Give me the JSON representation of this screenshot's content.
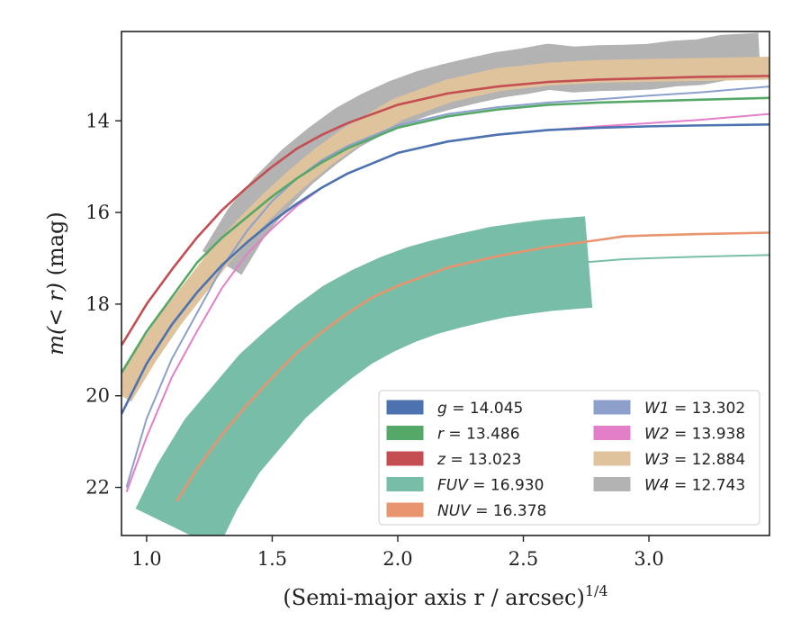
{
  "chart_data": {
    "type": "line",
    "xlabel": "(Semi-major axis r / arcsec)",
    "xlabel_exp": "1/4",
    "ylabel_prefix": "m(< r)",
    "ylabel_unit": " (mag)",
    "xlim": [
      0.9,
      3.48
    ],
    "ylim": [
      23.05,
      12.05
    ],
    "y_inverted": true,
    "xticks": [
      1.0,
      1.5,
      2.0,
      2.5,
      3.0
    ],
    "xtick_labels": [
      "1.0",
      "1.5",
      "2.0",
      "2.5",
      "3.0"
    ],
    "yticks": [
      14,
      16,
      18,
      20,
      22
    ],
    "ytick_labels": [
      "14",
      "16",
      "18",
      "20",
      "22"
    ],
    "grid": false,
    "legend_position": "lower-right",
    "series": [
      {
        "name": "g",
        "value_text": "14.045",
        "color": "#4c72b0",
        "x": [
          0.9,
          1.0,
          1.1,
          1.2,
          1.3,
          1.4,
          1.5,
          1.6,
          1.7,
          1.8,
          2.0,
          2.2,
          2.4,
          2.6,
          2.8,
          3.0,
          3.2,
          3.48
        ],
        "y": [
          20.4,
          19.3,
          18.45,
          17.75,
          17.15,
          16.65,
          16.2,
          15.8,
          15.45,
          15.15,
          14.7,
          14.45,
          14.3,
          14.2,
          14.15,
          14.12,
          14.1,
          14.08
        ]
      },
      {
        "name": "r",
        "value_text": "13.486",
        "color": "#55a868",
        "x": [
          0.9,
          1.0,
          1.1,
          1.2,
          1.3,
          1.4,
          1.5,
          1.6,
          1.7,
          1.8,
          2.0,
          2.2,
          2.4,
          2.6,
          2.8,
          3.0,
          3.2,
          3.48
        ],
        "y": [
          19.5,
          18.6,
          17.85,
          17.1,
          16.55,
          16.1,
          15.65,
          15.25,
          14.9,
          14.6,
          14.15,
          13.9,
          13.75,
          13.65,
          13.6,
          13.57,
          13.54,
          13.5
        ]
      },
      {
        "name": "z",
        "value_text": "13.023",
        "color": "#c44e52",
        "x": [
          0.9,
          1.0,
          1.1,
          1.2,
          1.3,
          1.4,
          1.5,
          1.6,
          1.7,
          1.8,
          2.0,
          2.2,
          2.4,
          2.6,
          2.8,
          3.0,
          3.2,
          3.48
        ],
        "y": [
          18.9,
          18.0,
          17.25,
          16.55,
          15.95,
          15.45,
          15.0,
          14.6,
          14.3,
          14.05,
          13.65,
          13.4,
          13.25,
          13.15,
          13.1,
          13.07,
          13.04,
          13.02
        ]
      },
      {
        "name": "FUV",
        "value_text": "16.930",
        "color": "#77bda8",
        "x": [
          1.12,
          1.2,
          1.3,
          1.4,
          1.5,
          1.6,
          1.7,
          1.8,
          1.9,
          2.0,
          2.1,
          2.2,
          2.3,
          2.4,
          2.5,
          2.6,
          2.76,
          2.9,
          3.1,
          3.3,
          3.48
        ],
        "y": [
          22.9,
          22.0,
          21.1,
          20.45,
          19.8,
          19.3,
          18.85,
          18.45,
          18.15,
          17.9,
          17.7,
          17.55,
          17.42,
          17.3,
          17.22,
          17.15,
          17.08,
          17.02,
          16.98,
          16.95,
          16.93
        ]
      },
      {
        "name": "NUV",
        "value_text": "16.378",
        "color": "#e8956f",
        "x": [
          1.12,
          1.2,
          1.3,
          1.4,
          1.5,
          1.6,
          1.7,
          1.8,
          1.9,
          2.0,
          2.2,
          2.4,
          2.6,
          2.8,
          2.9,
          3.0,
          3.2,
          3.48
        ],
        "y": [
          22.3,
          21.6,
          20.85,
          20.2,
          19.6,
          19.05,
          18.6,
          18.2,
          17.85,
          17.6,
          17.2,
          16.95,
          16.75,
          16.6,
          16.52,
          16.5,
          16.47,
          16.44
        ]
      },
      {
        "name": "W1",
        "value_text": "13.302",
        "color": "#8da0cb",
        "x": [
          0.92,
          1.0,
          1.1,
          1.2,
          1.3,
          1.4,
          1.5,
          1.6,
          1.7,
          1.8,
          2.0,
          2.2,
          2.4,
          2.6,
          2.8,
          3.0,
          3.2,
          3.48
        ],
        "y": [
          22.0,
          20.5,
          19.2,
          18.2,
          17.2,
          16.4,
          15.75,
          15.25,
          14.85,
          14.55,
          14.1,
          13.85,
          13.7,
          13.6,
          13.53,
          13.45,
          13.38,
          13.25
        ]
      },
      {
        "name": "W2",
        "value_text": "13.938",
        "color": "#e27fc8",
        "x": [
          0.92,
          1.0,
          1.1,
          1.2,
          1.3,
          1.4,
          1.5,
          1.6,
          1.7,
          1.8,
          2.0,
          2.2,
          2.4,
          2.6,
          2.8,
          3.0,
          3.2,
          3.48
        ],
        "y": [
          22.1,
          20.9,
          19.6,
          18.6,
          17.65,
          16.9,
          16.35,
          15.85,
          15.45,
          15.15,
          14.7,
          14.45,
          14.3,
          14.2,
          14.12,
          14.05,
          13.98,
          13.85
        ]
      },
      {
        "name": "W3",
        "value_text": "12.884",
        "color": "#dec39c",
        "x": [
          0.9,
          1.0,
          1.1,
          1.2,
          1.3,
          1.4,
          1.5,
          1.6,
          1.7,
          1.8,
          2.0,
          2.2,
          2.4,
          2.6,
          2.8,
          3.0,
          3.2,
          3.48
        ],
        "y": [
          20.0,
          19.1,
          18.3,
          17.6,
          16.9,
          16.3,
          15.75,
          15.25,
          14.8,
          14.4,
          13.75,
          13.35,
          13.1,
          12.98,
          12.92,
          12.9,
          12.88,
          12.85
        ]
      },
      {
        "name": "W4",
        "value_text": "12.743",
        "color": "#b3b3b3",
        "x": [
          1.3,
          1.4,
          1.5,
          1.6,
          1.7,
          1.8,
          1.9,
          2.0,
          2.1,
          2.2,
          2.3,
          2.4,
          2.5,
          2.6,
          2.7,
          2.8,
          2.9,
          3.0,
          3.1,
          3.2,
          3.3,
          3.44
        ],
        "y": [
          17.1,
          16.2,
          15.55,
          15.0,
          14.55,
          14.15,
          13.85,
          13.6,
          13.4,
          13.25,
          13.12,
          13.0,
          12.92,
          12.82,
          12.88,
          12.85,
          12.84,
          12.82,
          12.75,
          12.72,
          12.62,
          12.58
        ]
      }
    ],
    "bands": {
      "W4": 1.0,
      "FUV": 2.0,
      "W3": 0.5
    },
    "legend_columns": [
      [
        "g",
        "r",
        "z",
        "FUV",
        "NUV"
      ],
      [
        "W1",
        "W2",
        "W3",
        "W4"
      ]
    ]
  }
}
